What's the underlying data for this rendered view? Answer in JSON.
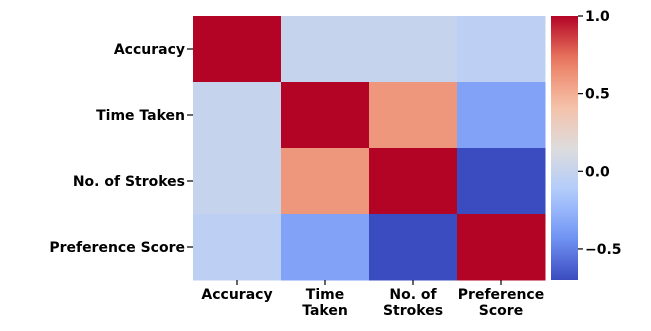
{
  "chart_data": {
    "type": "heatmap",
    "title": "",
    "xlabel": "",
    "ylabel": "",
    "rows": [
      "Accuracy",
      "Time Taken",
      "No. of Strokes",
      "Preference Score"
    ],
    "columns": [
      [
        "Accuracy"
      ],
      [
        "Time",
        "Taken"
      ],
      [
        "No. of",
        "Strokes"
      ],
      [
        "Preference",
        "Score"
      ]
    ],
    "values": [
      [
        1.0,
        0.0,
        0.0,
        -0.05
      ],
      [
        0.0,
        1.0,
        0.6,
        -0.35
      ],
      [
        0.0,
        0.6,
        1.0,
        -0.7
      ],
      [
        -0.05,
        -0.35,
        -0.7,
        1.0
      ]
    ],
    "colorbar": {
      "vmin": -0.7,
      "vmax": 1.0,
      "ticks": [
        1.0,
        0.5,
        0.0,
        -0.5
      ],
      "tick_labels": [
        "1.0",
        "0.5",
        "0.0",
        "−0.5"
      ],
      "colormap": "coolwarm",
      "colors": [
        "#3b4cc0",
        "#7396f5",
        "#b0cbfc",
        "#dddcdc",
        "#f6bfa6",
        "#ea7b60",
        "#b40426"
      ]
    }
  }
}
